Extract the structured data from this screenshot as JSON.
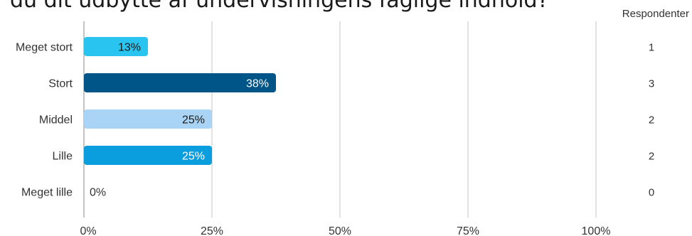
{
  "chart_data": {
    "type": "bar",
    "orientation": "horizontal",
    "title": "du dit udbytte af undervisningens faglige indhold?",
    "categories": [
      "Meget stort",
      "Stort",
      "Middel",
      "Lille",
      "Meget lille"
    ],
    "values": [
      12.5,
      37.5,
      25,
      25,
      0
    ],
    "data_labels": [
      "13%",
      "38%",
      "25%",
      "25%",
      "0%"
    ],
    "respondents_header": "Respondenter",
    "respondents": [
      "1",
      "3",
      "2",
      "2",
      "0"
    ],
    "x_ticks": [
      "0%",
      "25%",
      "50%",
      "75%",
      "100%"
    ],
    "xlim": [
      0,
      100
    ],
    "grid": true,
    "colors": [
      "#29c4f0",
      "#005588",
      "#a9d4f5",
      "#0a9ede",
      "#0a9ede"
    ],
    "label_colors": [
      "#1a1a1a",
      "#ffffff",
      "#1a1a1a",
      "#ffffff",
      "#333333"
    ]
  }
}
